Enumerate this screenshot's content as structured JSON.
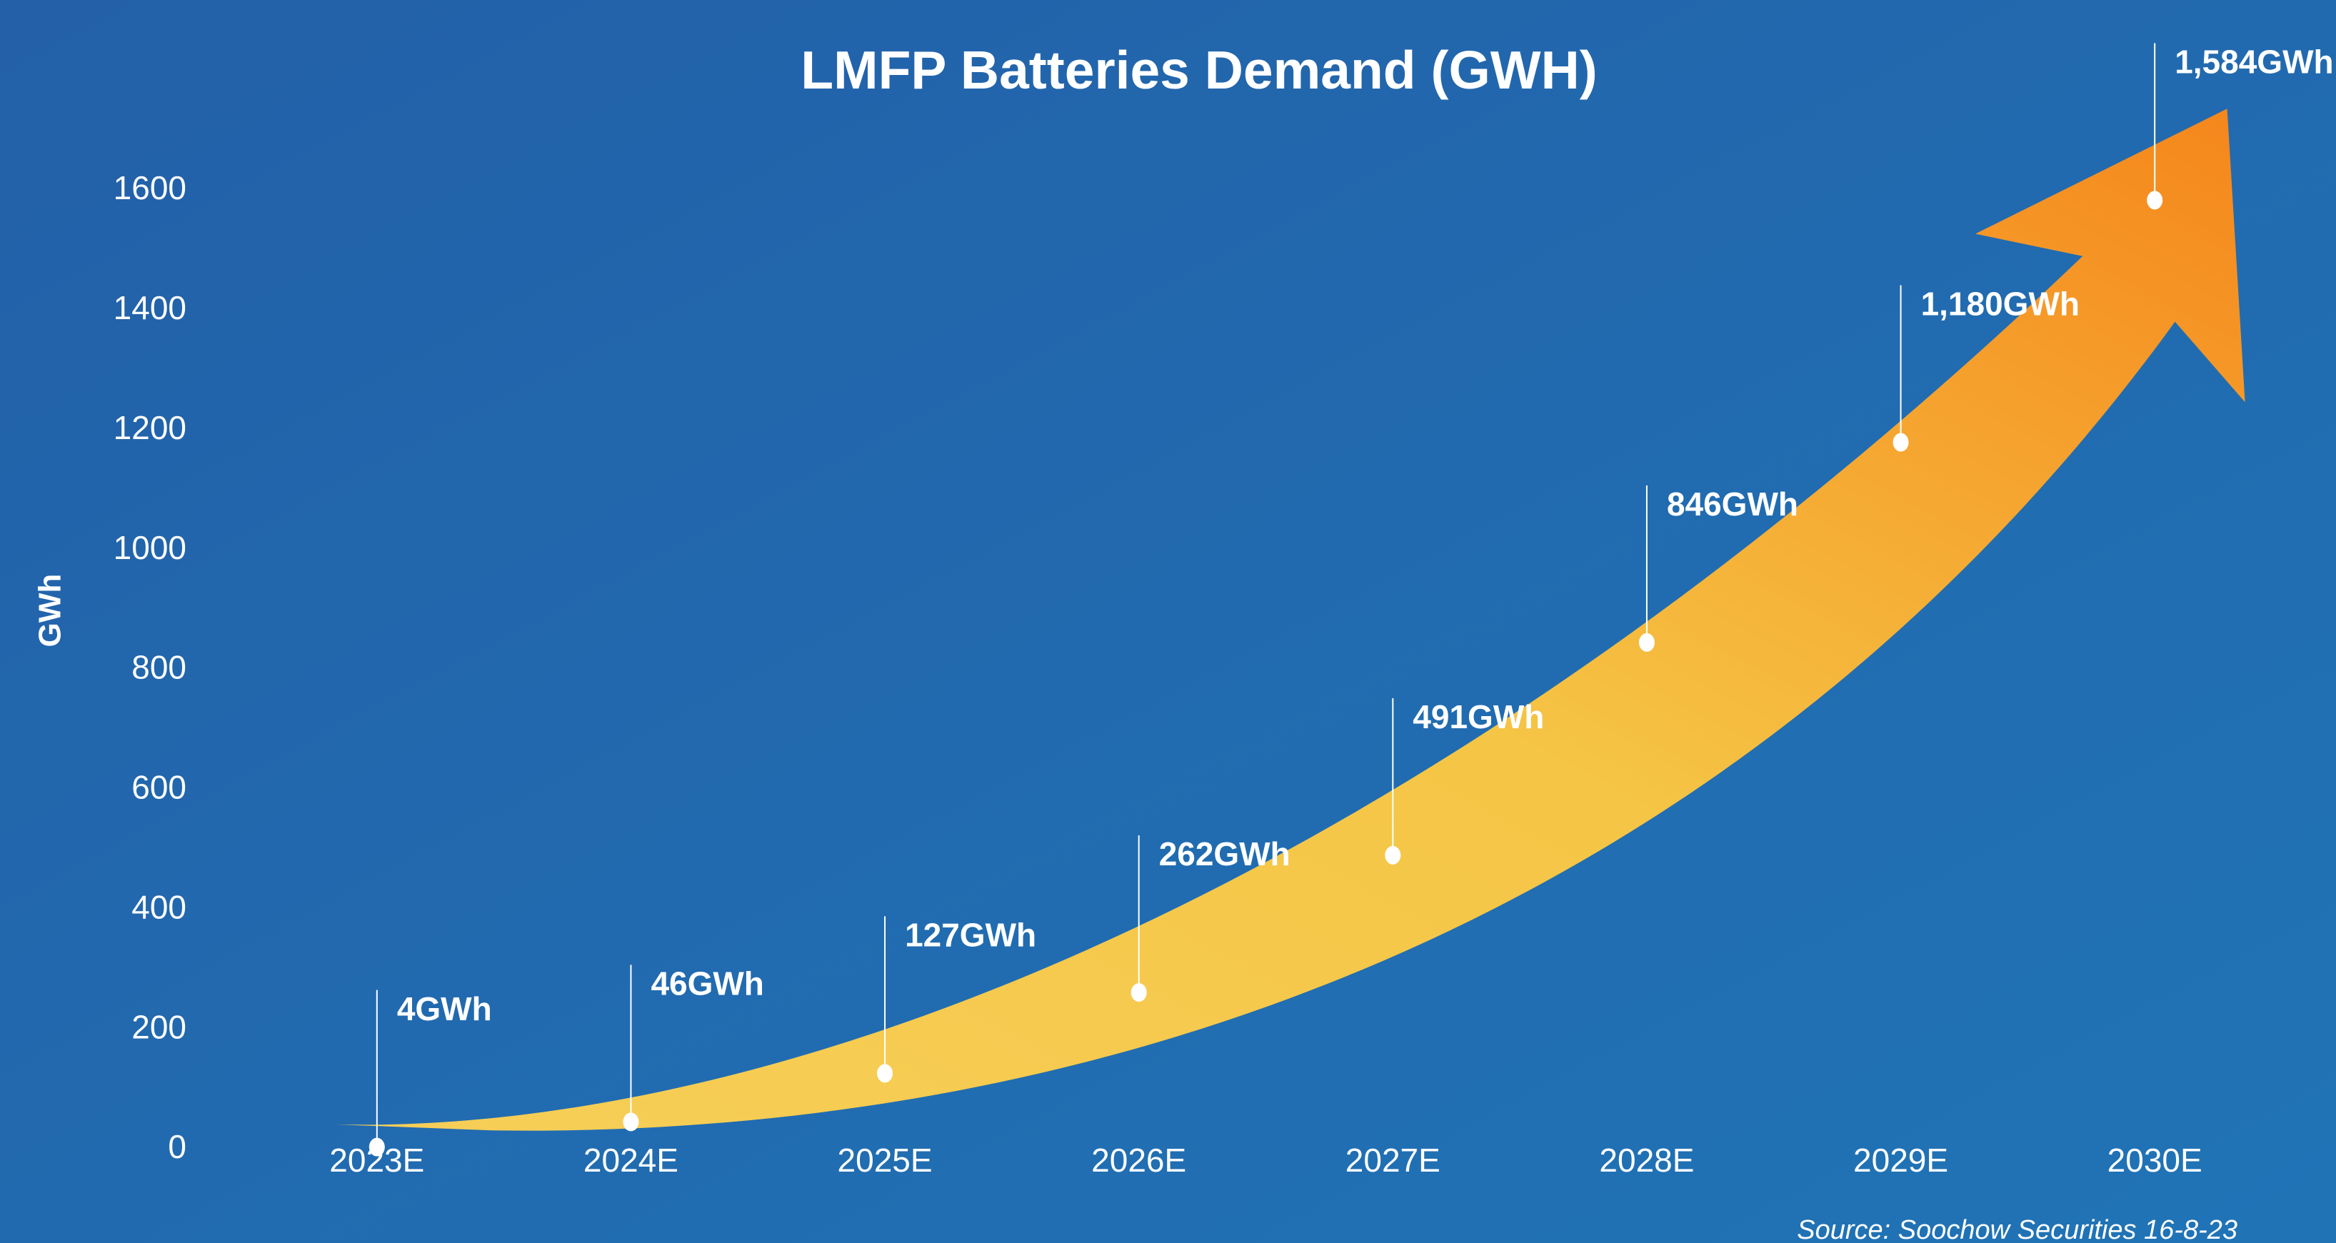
{
  "chart_data": {
    "type": "line",
    "title": "LMFP Batteries Demand (GWH)",
    "y_label": "GWh",
    "source": "Source: Soochow Securities 16-8-23",
    "categories": [
      "2023E",
      "2024E",
      "2025E",
      "2026E",
      "2027E",
      "2028E",
      "2029E",
      "2030E"
    ],
    "values": [
      4,
      46,
      127,
      262,
      491,
      846,
      1180,
      1584
    ],
    "value_labels": [
      "4GWh",
      "46GWh",
      "127GWh",
      "262GWh",
      "491GWh",
      "846GWh",
      "1,180GWh",
      "1,584GWh"
    ],
    "color": "#ffffff",
    "ylim": [
      0,
      1600
    ],
    "yticks": [
      0,
      200,
      400,
      600,
      800,
      1000,
      1200,
      1400,
      1600
    ],
    "grid": false
  }
}
